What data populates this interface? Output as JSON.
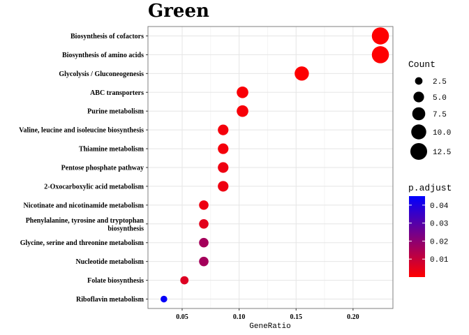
{
  "chart_data": {
    "type": "scatter",
    "title": "Green",
    "xlabel": "GeneRatio",
    "ylabel": "",
    "xlim": [
      0.02,
      0.235
    ],
    "xticks": [
      0.05,
      0.1,
      0.15,
      0.2
    ],
    "xtick_labels": [
      "0.05",
      "0.10",
      "0.15",
      "0.20"
    ],
    "grid": true,
    "legend_position": "right",
    "categories": [
      "Biosynthesis of cofactors",
      "Biosynthesis of amino acids",
      "Glycolysis / Gluconeogenesis",
      "ABC transporters",
      "Purine metabolism",
      "Valine, leucine and isoleucine biosynthesis",
      "Thiamine metabolism",
      "Pentose phosphate pathway",
      "2-Oxocarboxylic acid metabolism",
      "Nicotinate and nicotinamide metabolism",
      "Phenylalanine, tyrosine and tryptophan biosynthesis",
      "Glycine, serine and threonine metabolism",
      "Nucleotide metabolism",
      "Folate biosynthesis",
      "Riboflavin metabolism"
    ],
    "label_lines": [
      [
        "Biosynthesis of cofactors"
      ],
      [
        "Biosynthesis of amino acids"
      ],
      [
        "Glycolysis / Gluconeogenesis"
      ],
      [
        "ABC transporters"
      ],
      [
        "Purine metabolism"
      ],
      [
        "Valine, leucine and isoleucine biosynthesis"
      ],
      [
        "Thiamine metabolism"
      ],
      [
        "Pentose phosphate pathway"
      ],
      [
        "2-Oxocarboxylic acid metabolism"
      ],
      [
        "Nicotinate and nicotinamide metabolism"
      ],
      [
        "Phenylalanine, tyrosine and tryptophan",
        "biosynthesis"
      ],
      [
        "Glycine, serine and threonine metabolism"
      ],
      [
        "Nucleotide metabolism"
      ],
      [
        "Folate biosynthesis"
      ],
      [
        "Riboflavin metabolism"
      ]
    ],
    "gene_ratio": [
      0.224,
      0.224,
      0.155,
      0.103,
      0.103,
      0.086,
      0.086,
      0.086,
      0.086,
      0.069,
      0.069,
      0.069,
      0.069,
      0.052,
      0.034
    ],
    "count": [
      13,
      13,
      9,
      6,
      6,
      5,
      5,
      5,
      5,
      4,
      4,
      4,
      4,
      3,
      2
    ],
    "p_adjust": [
      0.0001,
      0.0001,
      0.0003,
      0.001,
      0.0015,
      0.002,
      0.002,
      0.003,
      0.003,
      0.003,
      0.005,
      0.016,
      0.016,
      0.006,
      0.044
    ],
    "size_legend": {
      "title": "Count",
      "values": [
        2.5,
        5.0,
        7.5,
        10.0,
        12.5
      ],
      "labels": [
        "2.5",
        "5.0",
        "7.5",
        "10.0",
        "12.5"
      ]
    },
    "color_legend": {
      "title": "p.adjust",
      "range": [
        0.0,
        0.045
      ],
      "ticks": [
        0.01,
        0.02,
        0.03,
        0.04
      ],
      "tick_labels": [
        "0.01",
        "0.02",
        "0.03",
        "0.04"
      ],
      "low_color": "#FF0000",
      "high_color": "#0000FF"
    }
  }
}
